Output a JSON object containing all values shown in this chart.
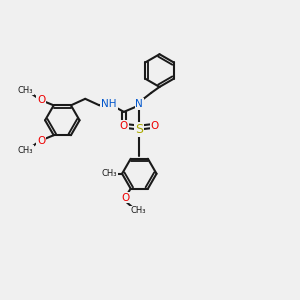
{
  "bg": "#f0f0f0",
  "bc": "#1a1a1a",
  "Nc": "#0055cc",
  "Oc": "#ee0000",
  "Sc": "#aaaa00",
  "lw": 1.5,
  "fs": 7.5,
  "fss": 6.0,
  "xlim": [
    0,
    10
  ],
  "ylim": [
    0,
    10
  ],
  "figsize": [
    3.0,
    3.0
  ],
  "dpi": 100
}
